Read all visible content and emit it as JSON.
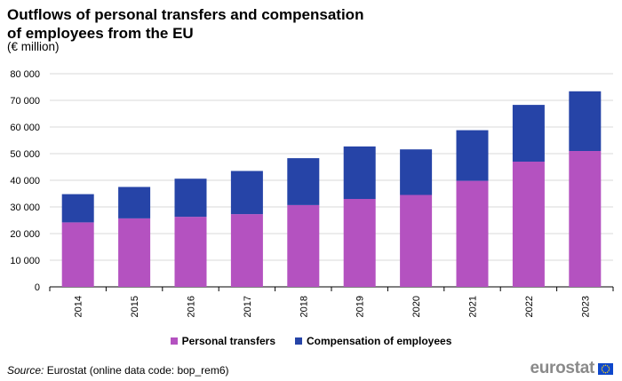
{
  "chart_data": {
    "type": "bar",
    "stacked": true,
    "title": "Outflows of personal transfers and compensation of employees from the EU",
    "subtitle": "(€ million)",
    "categories": [
      "2014",
      "2015",
      "2016",
      "2017",
      "2018",
      "2019",
      "2020",
      "2021",
      "2022",
      "2023"
    ],
    "series": [
      {
        "name": "Personal transfers",
        "color": "#b452c0",
        "values": [
          24200,
          25700,
          26300,
          27300,
          30700,
          33000,
          34500,
          39800,
          47000,
          51000
        ]
      },
      {
        "name": "Compensation of employees",
        "color": "#2644a7",
        "values": [
          10600,
          11800,
          14300,
          16200,
          17600,
          19700,
          17100,
          19000,
          21300,
          22400
        ]
      }
    ],
    "ylim": [
      0,
      80000
    ],
    "yticks": [
      0,
      10000,
      20000,
      30000,
      40000,
      50000,
      60000,
      70000,
      80000
    ],
    "ytick_labels": [
      "0",
      "10 000",
      "20 000",
      "30 000",
      "40 000",
      "50 000",
      "60 000",
      "70 000",
      "80 000"
    ],
    "grid": true,
    "legend_position": "bottom"
  },
  "source": {
    "label": "Source:",
    "text": " Eurostat (online data code: bop_rem6)"
  },
  "logo": {
    "text": "eurostat",
    "icon": "eu-flag-icon"
  }
}
